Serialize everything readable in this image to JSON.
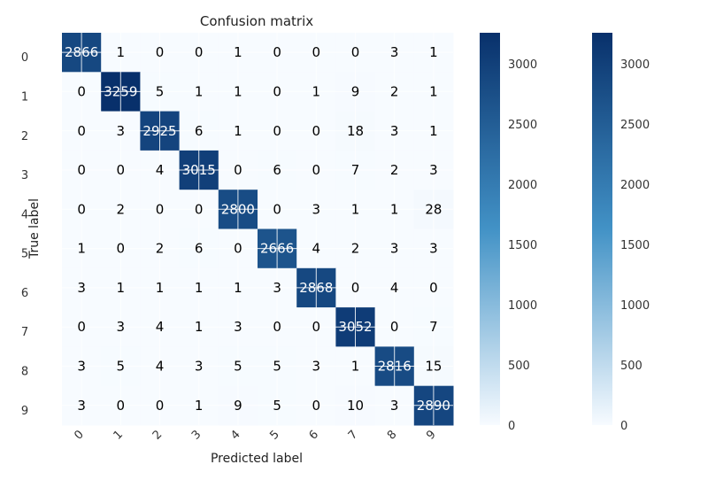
{
  "chart_data": {
    "type": "heatmap",
    "title": "Confusion matrix",
    "xlabel": "Predicted label",
    "ylabel": "True label",
    "x_categories": [
      "0",
      "1",
      "2",
      "3",
      "4",
      "5",
      "6",
      "7",
      "8",
      "9"
    ],
    "y_categories": [
      "0",
      "1",
      "2",
      "3",
      "4",
      "5",
      "6",
      "7",
      "8",
      "9"
    ],
    "matrix": [
      [
        2866,
        1,
        0,
        0,
        1,
        0,
        0,
        0,
        3,
        1
      ],
      [
        0,
        3259,
        5,
        1,
        1,
        0,
        1,
        9,
        2,
        1
      ],
      [
        0,
        3,
        2925,
        6,
        1,
        0,
        0,
        18,
        3,
        1
      ],
      [
        0,
        0,
        4,
        3015,
        0,
        6,
        0,
        7,
        2,
        3
      ],
      [
        0,
        2,
        0,
        0,
        2800,
        0,
        3,
        1,
        1,
        28
      ],
      [
        1,
        0,
        2,
        6,
        0,
        2666,
        4,
        2,
        3,
        3
      ],
      [
        3,
        1,
        1,
        1,
        1,
        3,
        2868,
        0,
        4,
        0
      ],
      [
        0,
        3,
        4,
        1,
        3,
        0,
        0,
        3052,
        0,
        7
      ],
      [
        3,
        5,
        4,
        3,
        5,
        5,
        3,
        1,
        2816,
        15
      ],
      [
        3,
        0,
        0,
        1,
        9,
        5,
        0,
        10,
        3,
        2890
      ]
    ],
    "colormap": "Blues",
    "color_low": "#f7fbff",
    "color_high": "#08306b",
    "vmin": 0,
    "vmax": 3259,
    "colorbars": [
      {
        "ticks": [
          "0",
          "500",
          "1000",
          "1500",
          "2000",
          "2500",
          "3000"
        ]
      },
      {
        "ticks": [
          "0",
          "500",
          "1000",
          "1500",
          "2000",
          "2500",
          "3000"
        ]
      }
    ],
    "grid": true
  }
}
